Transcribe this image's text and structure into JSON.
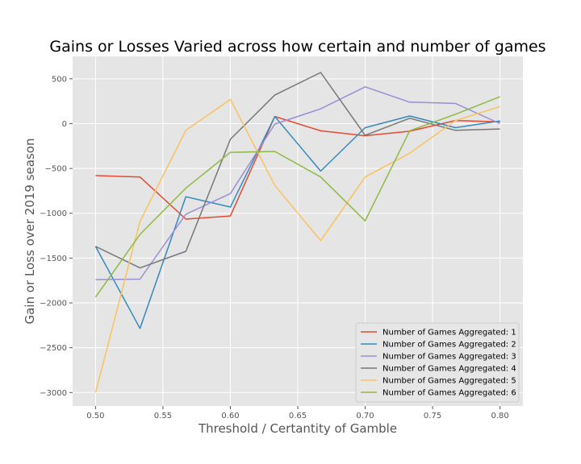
{
  "chart_data": {
    "type": "line",
    "title": "Gains or Losses Varied across how certain and number of games",
    "xlabel": "Threshold / Certantity of Gamble",
    "ylabel": "Gain or Loss over 2019 season",
    "xlim": [
      0.483,
      0.817
    ],
    "ylim": [
      -3150,
      750
    ],
    "grid": true,
    "legend_position": "lower-right",
    "x_ticks": [
      0.5,
      0.55,
      0.6,
      0.65,
      0.7,
      0.75,
      0.8
    ],
    "x_tick_labels": [
      "0.50",
      "0.55",
      "0.60",
      "0.65",
      "0.70",
      "0.75",
      "0.80"
    ],
    "y_ticks": [
      500,
      0,
      -500,
      -1000,
      -1500,
      -2000,
      -2500,
      -3000
    ],
    "y_tick_labels": [
      "500",
      "0",
      "−500",
      "−1000",
      "−1500",
      "−2000",
      "−2500",
      "−3000"
    ],
    "x": [
      0.5,
      0.533,
      0.567,
      0.6,
      0.633,
      0.667,
      0.7,
      0.733,
      0.767,
      0.8
    ],
    "series": [
      {
        "name": "Number of Games Aggregated: 1",
        "color": "#E24A33",
        "values": [
          -580,
          -595,
          -1065,
          -1030,
          80,
          -80,
          -135,
          -85,
          35,
          20
        ]
      },
      {
        "name": "Number of Games Aggregated: 2",
        "color": "#348ABD",
        "values": [
          -1370,
          -2285,
          -815,
          -930,
          80,
          -530,
          -45,
          85,
          -45,
          30
        ]
      },
      {
        "name": "Number of Games Aggregated: 3",
        "color": "#988ED5",
        "values": [
          -1740,
          -1735,
          -1010,
          -780,
          -5,
          165,
          410,
          240,
          225,
          0
        ]
      },
      {
        "name": "Number of Games Aggregated: 4",
        "color": "#777777",
        "values": [
          -1370,
          -1610,
          -1425,
          -175,
          320,
          570,
          -130,
          60,
          -75,
          -60
        ]
      },
      {
        "name": "Number of Games Aggregated: 5",
        "color": "#FBC15E",
        "values": [
          -3000,
          -1090,
          -75,
          270,
          -690,
          -1305,
          -595,
          -330,
          35,
          190
        ]
      },
      {
        "name": "Number of Games Aggregated: 6",
        "color": "#8EBA42",
        "values": [
          -1935,
          -1235,
          -720,
          -320,
          -310,
          -595,
          -1085,
          -80,
          105,
          300
        ]
      }
    ]
  }
}
